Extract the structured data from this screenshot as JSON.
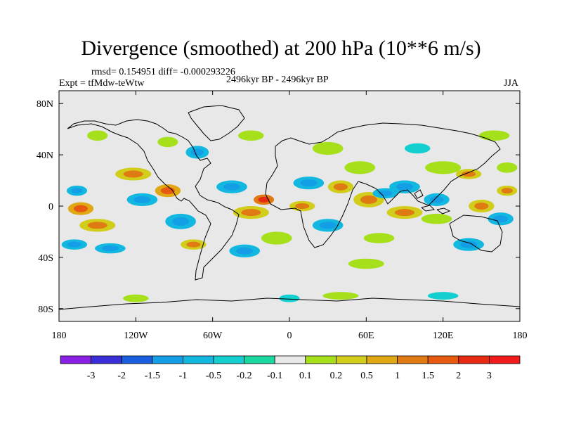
{
  "title": "Divergence (smoothed) at 200 hPa (10**6 m/s)",
  "stats": "rmsd= 0.154951 diff= -0.000293226",
  "experiment": "Expt = tfMdw-teWtw",
  "period": "2496kyr BP - 2496kyr BP",
  "season": "JJA",
  "chart_data": {
    "type": "heatmap",
    "title": "Divergence (smoothed) at 200 hPa (10**6 m/s)",
    "units": "10**6 m/s",
    "projection": "cylindrical-equidistant",
    "lon_range": [
      -180,
      180
    ],
    "lat_range": [
      -90,
      90
    ],
    "x_ticks": [
      "180",
      "120W",
      "60W",
      "0",
      "60E",
      "120E",
      "180"
    ],
    "y_ticks": [
      "80N",
      "40N",
      "0",
      "40S",
      "80S"
    ],
    "colorbar_labels": [
      "-3",
      "-2",
      "-1.5",
      "-1",
      "-0.5",
      "-0.2",
      "-0.1",
      "0.1",
      "0.2",
      "0.5",
      "1",
      "1.5",
      "2",
      "3"
    ],
    "colorbar_colors": [
      "#8a1fe6",
      "#3a2ed8",
      "#1a5fe0",
      "#139ee6",
      "#13b8e0",
      "#13cfd0",
      "#1ad9a0",
      "#e8e8e8",
      "#a6e01a",
      "#d2cd1a",
      "#e0a812",
      "#e07a12",
      "#e85a12",
      "#e82a12",
      "#f21a1a"
    ],
    "background_color": "#e8e8e8",
    "anomaly_blobs": [
      {
        "lon": -163,
        "lat": -2,
        "rx": 10,
        "ry": 5,
        "value": 1
      },
      {
        "lon": -166,
        "lat": 12,
        "rx": 8,
        "ry": 4,
        "value": -0.5
      },
      {
        "lon": -150,
        "lat": -15,
        "rx": 14,
        "ry": 5,
        "value": 0.5
      },
      {
        "lon": -168,
        "lat": -30,
        "rx": 10,
        "ry": 4,
        "value": -0.5
      },
      {
        "lon": -140,
        "lat": -33,
        "rx": 12,
        "ry": 4,
        "value": -0.5
      },
      {
        "lon": -122,
        "lat": 25,
        "rx": 14,
        "ry": 5,
        "value": 0.5
      },
      {
        "lon": -115,
        "lat": 5,
        "rx": 12,
        "ry": 5,
        "value": -0.5
      },
      {
        "lon": -95,
        "lat": 12,
        "rx": 10,
        "ry": 5,
        "value": 1
      },
      {
        "lon": -85,
        "lat": -12,
        "rx": 12,
        "ry": 6,
        "value": -0.5
      },
      {
        "lon": -75,
        "lat": -30,
        "rx": 10,
        "ry": 4,
        "value": 0.5
      },
      {
        "lon": -72,
        "lat": 42,
        "rx": 9,
        "ry": 5,
        "value": -0.5
      },
      {
        "lon": -95,
        "lat": 50,
        "rx": 8,
        "ry": 4,
        "value": 0.2
      },
      {
        "lon": -150,
        "lat": 55,
        "rx": 8,
        "ry": 4,
        "value": 0.2
      },
      {
        "lon": -45,
        "lat": 15,
        "rx": 12,
        "ry": 5,
        "value": -0.5
      },
      {
        "lon": -30,
        "lat": -5,
        "rx": 14,
        "ry": 5,
        "value": 0.5
      },
      {
        "lon": -20,
        "lat": 5,
        "rx": 8,
        "ry": 4,
        "value": 1.5
      },
      {
        "lon": -35,
        "lat": -35,
        "rx": 12,
        "ry": 5,
        "value": -0.5
      },
      {
        "lon": -10,
        "lat": -25,
        "rx": 12,
        "ry": 5,
        "value": 0.2
      },
      {
        "lon": -30,
        "lat": 55,
        "rx": 10,
        "ry": 4,
        "value": 0.2
      },
      {
        "lon": 15,
        "lat": 18,
        "rx": 12,
        "ry": 5,
        "value": -0.5
      },
      {
        "lon": 10,
        "lat": 0,
        "rx": 10,
        "ry": 4,
        "value": 0.5
      },
      {
        "lon": 30,
        "lat": -15,
        "rx": 12,
        "ry": 5,
        "value": -0.5
      },
      {
        "lon": 40,
        "lat": 15,
        "rx": 10,
        "ry": 5,
        "value": 0.5
      },
      {
        "lon": 30,
        "lat": 45,
        "rx": 12,
        "ry": 5,
        "value": 0.2
      },
      {
        "lon": 55,
        "lat": 30,
        "rx": 12,
        "ry": 5,
        "value": 0.2
      },
      {
        "lon": 62,
        "lat": 5,
        "rx": 12,
        "ry": 6,
        "value": 0.5
      },
      {
        "lon": 75,
        "lat": 10,
        "rx": 10,
        "ry": 4,
        "value": -0.5
      },
      {
        "lon": 90,
        "lat": 15,
        "rx": 12,
        "ry": 5,
        "value": -0.5
      },
      {
        "lon": 90,
        "lat": -5,
        "rx": 14,
        "ry": 5,
        "value": 0.5
      },
      {
        "lon": 70,
        "lat": -25,
        "rx": 12,
        "ry": 4,
        "value": 0.2
      },
      {
        "lon": 60,
        "lat": -45,
        "rx": 14,
        "ry": 4,
        "value": 0.2
      },
      {
        "lon": 115,
        "lat": 5,
        "rx": 10,
        "ry": 5,
        "value": -0.5
      },
      {
        "lon": 115,
        "lat": -10,
        "rx": 12,
        "ry": 4,
        "value": 0.2
      },
      {
        "lon": 120,
        "lat": 30,
        "rx": 14,
        "ry": 5,
        "value": 0.2
      },
      {
        "lon": 140,
        "lat": 25,
        "rx": 10,
        "ry": 4,
        "value": 0.5
      },
      {
        "lon": 150,
        "lat": 0,
        "rx": 10,
        "ry": 5,
        "value": 0.5
      },
      {
        "lon": 165,
        "lat": -10,
        "rx": 10,
        "ry": 5,
        "value": -0.5
      },
      {
        "lon": 140,
        "lat": -30,
        "rx": 12,
        "ry": 5,
        "value": -0.5
      },
      {
        "lon": 170,
        "lat": 12,
        "rx": 8,
        "ry": 4,
        "value": 0.5
      },
      {
        "lon": 170,
        "lat": 30,
        "rx": 8,
        "ry": 4,
        "value": 0.2
      },
      {
        "lon": 160,
        "lat": 55,
        "rx": 12,
        "ry": 4,
        "value": 0.2
      },
      {
        "lon": 100,
        "lat": 45,
        "rx": 10,
        "ry": 4,
        "value": -0.2
      },
      {
        "lon": 40,
        "lat": -70,
        "rx": 14,
        "ry": 3,
        "value": 0.2
      },
      {
        "lon": 120,
        "lat": -70,
        "rx": 12,
        "ry": 3,
        "value": -0.2
      },
      {
        "lon": -120,
        "lat": -72,
        "rx": 10,
        "ry": 3,
        "value": 0.2
      },
      {
        "lon": 0,
        "lat": -72,
        "rx": 8,
        "ry": 3,
        "value": -0.2
      }
    ]
  }
}
